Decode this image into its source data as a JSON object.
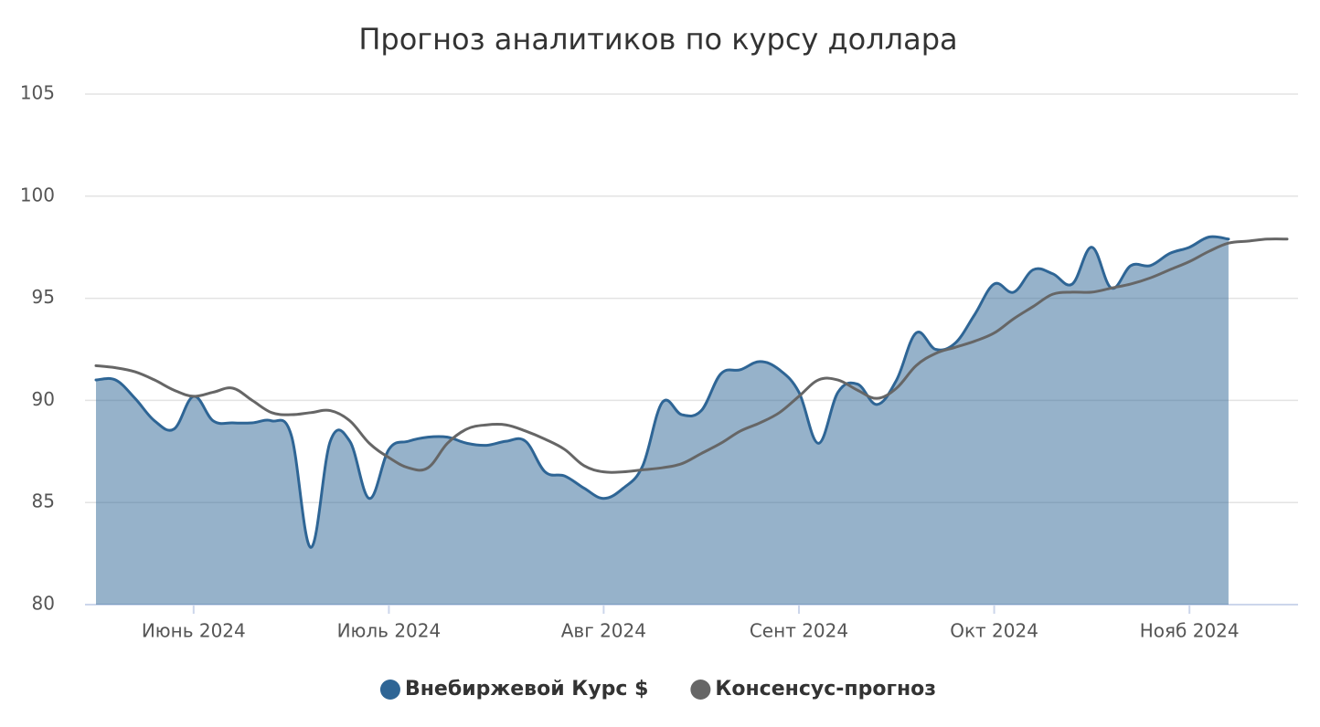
{
  "chart_data": {
    "type": "line",
    "title": "Прогноз аналитиков по курсу доллара",
    "categories": [
      null,
      null,
      null,
      null,
      null,
      "Июнь 2024",
      null,
      null,
      null,
      null,
      null,
      null,
      null,
      null,
      null,
      "Июль 2024",
      null,
      null,
      null,
      null,
      null,
      null,
      null,
      null,
      null,
      null,
      "Авг 2024",
      null,
      null,
      null,
      null,
      null,
      null,
      null,
      null,
      null,
      "Сент 2024",
      null,
      null,
      null,
      null,
      null,
      null,
      null,
      null,
      null,
      "Окт 2024",
      null,
      null,
      null,
      null,
      null,
      null,
      null,
      null,
      null,
      "Нояб 2024",
      null,
      null,
      null,
      null,
      null
    ],
    "series": [
      {
        "name": "Внебиржевой Курс $",
        "color": "#2e6595",
        "area": true,
        "values": [
          91.0,
          91.0,
          90.1,
          89.0,
          88.6,
          90.2,
          89.0,
          88.9,
          88.9,
          89.0,
          88.3,
          82.8,
          88.0,
          88.0,
          85.2,
          87.6,
          88.0,
          88.2,
          88.2,
          87.9,
          87.8,
          88.0,
          88.0,
          86.5,
          86.3,
          85.7,
          85.2,
          85.7,
          86.8,
          89.9,
          89.3,
          89.5,
          91.3,
          91.5,
          91.9,
          91.5,
          90.4,
          87.9,
          90.4,
          90.8,
          89.8,
          91.0,
          93.3,
          92.5,
          92.8,
          94.2,
          95.7,
          95.3,
          96.4,
          96.2,
          95.7,
          97.5,
          95.5,
          96.6,
          96.6,
          97.2,
          97.5,
          98.0,
          97.9,
          null,
          null,
          null
        ]
      },
      {
        "name": "Консенсус-прогноз",
        "color": "#666666",
        "area": false,
        "values": [
          91.7,
          91.6,
          91.4,
          91.0,
          90.5,
          90.2,
          90.4,
          90.6,
          90.0,
          89.4,
          89.3,
          89.4,
          89.5,
          89.0,
          87.9,
          87.2,
          86.7,
          86.7,
          87.9,
          88.6,
          88.8,
          88.8,
          88.5,
          88.1,
          87.6,
          86.8,
          86.5,
          86.5,
          86.6,
          86.7,
          86.9,
          87.4,
          87.9,
          88.5,
          88.9,
          89.4,
          90.2,
          91.0,
          91.0,
          90.5,
          90.1,
          90.6,
          91.7,
          92.3,
          92.6,
          92.9,
          93.3,
          94.0,
          94.6,
          95.2,
          95.3,
          95.3,
          95.5,
          95.7,
          96.0,
          96.4,
          96.8,
          97.3,
          97.7,
          97.8,
          97.9,
          97.9
        ]
      }
    ],
    "ylim": [
      80,
      105
    ],
    "yticks": [
      80,
      85,
      90,
      95,
      100,
      105
    ],
    "grid": true
  }
}
